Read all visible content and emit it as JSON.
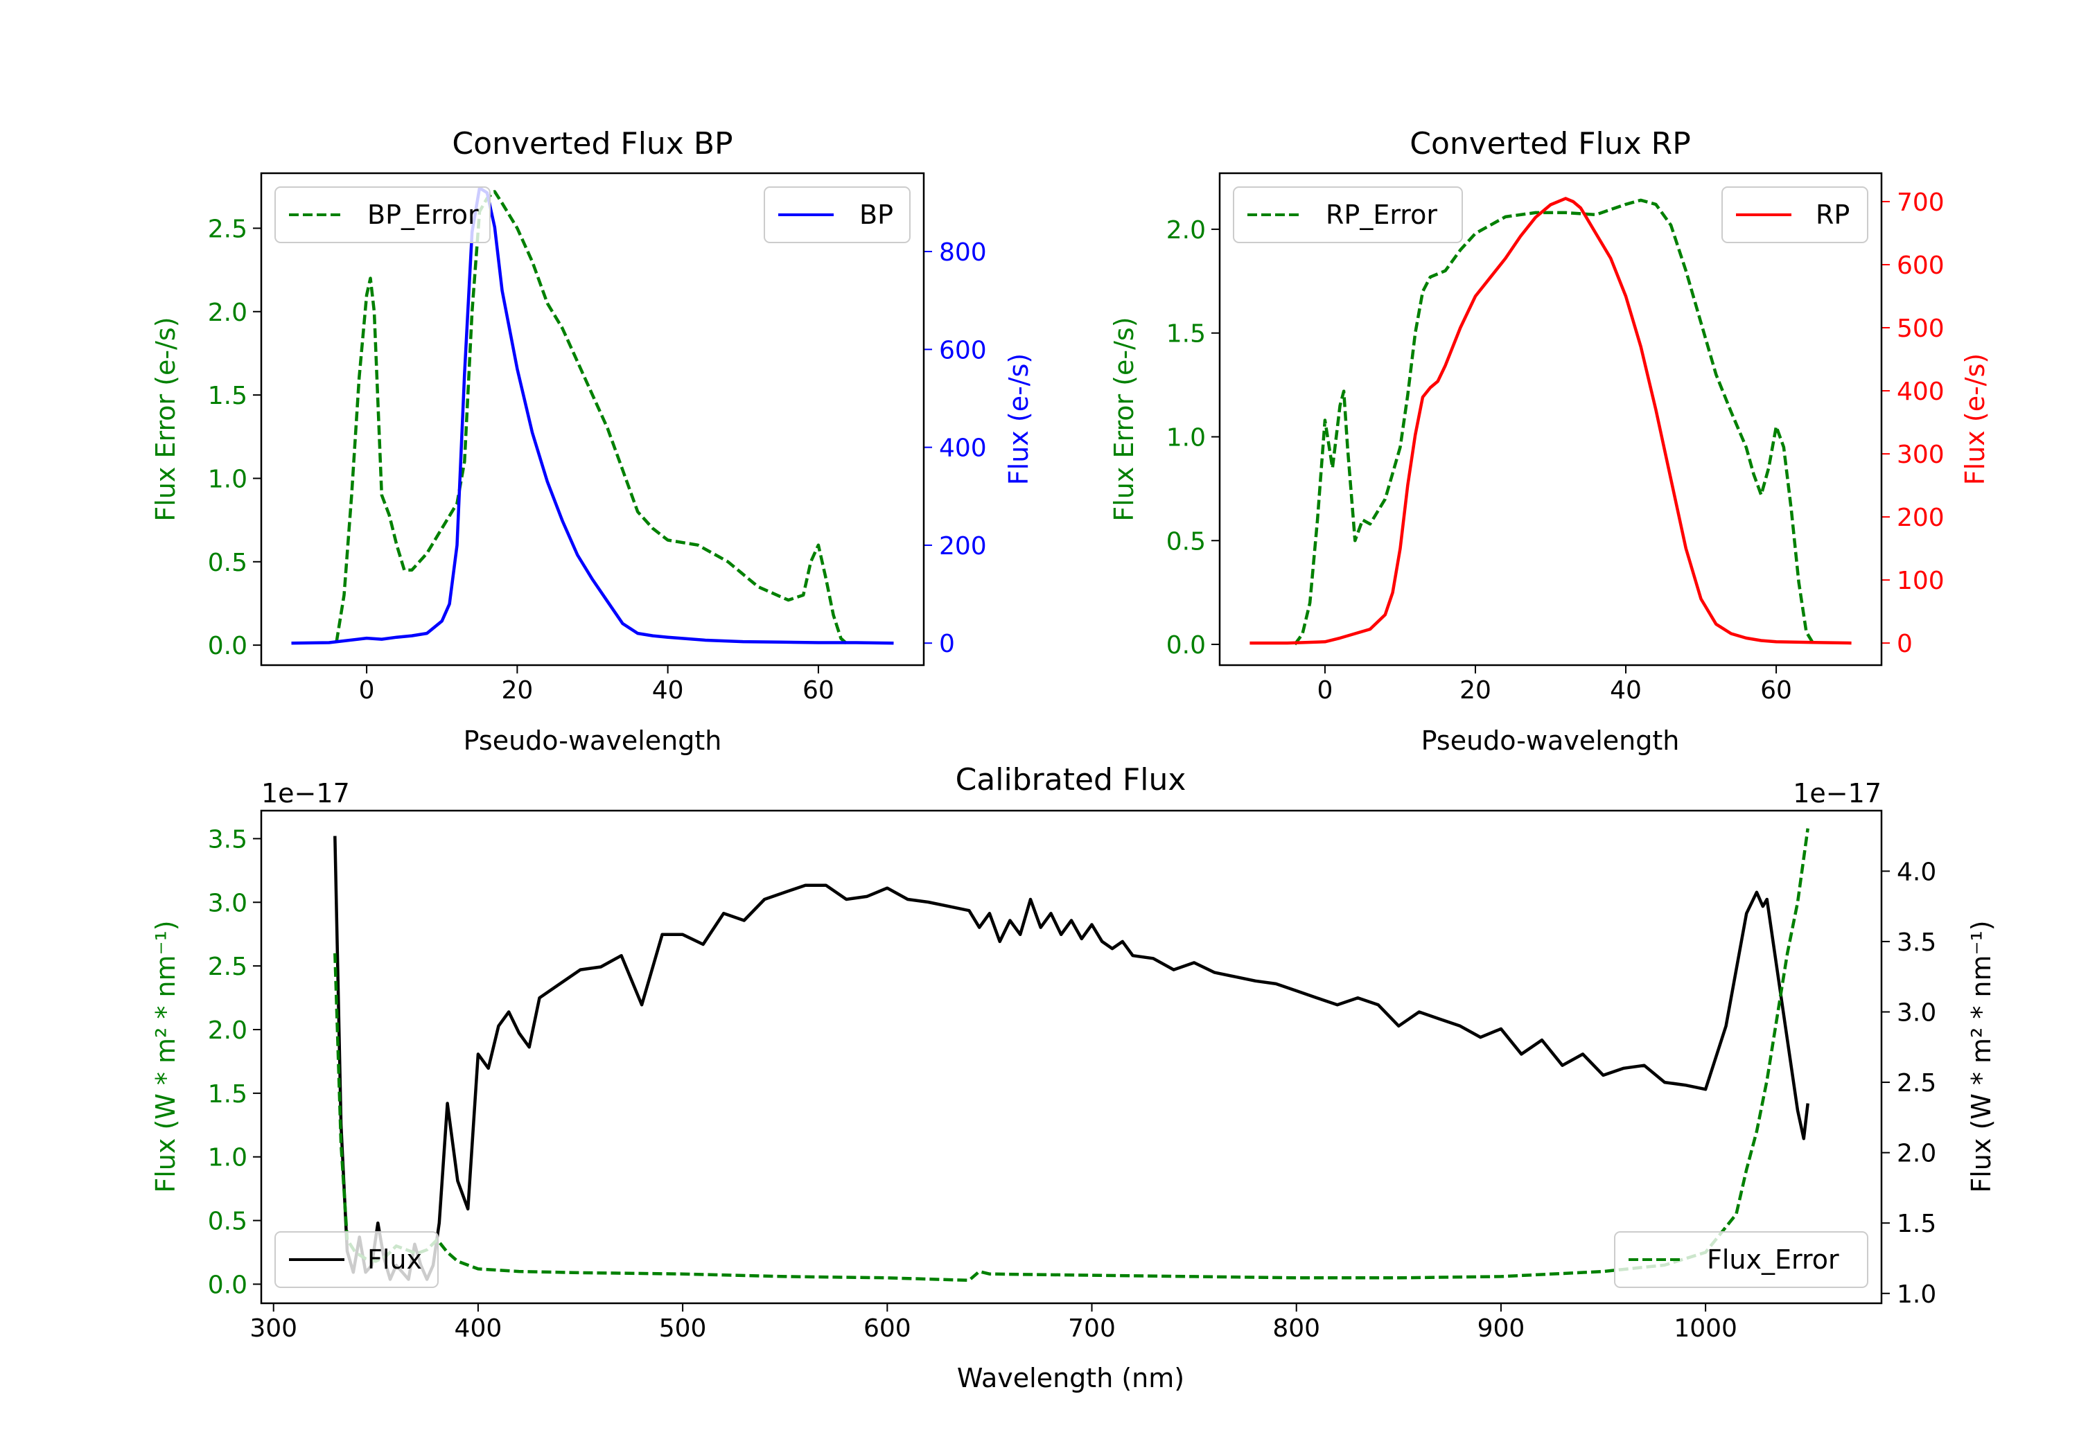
{
  "chart_data": [
    {
      "type": "line",
      "title": "Converted Flux BP",
      "xlabel": "Pseudo-wavelength",
      "ylabel_left": "Flux Error (e-/s)",
      "ylabel_right": "Flux (e-/s)",
      "xlim": [
        -14,
        74
      ],
      "ylim_left": [
        -0.12,
        2.83
      ],
      "ylim_right": [
        -45,
        960
      ],
      "x_ticks": [
        "0",
        "20",
        "40",
        "60"
      ],
      "y_ticks_left": [
        "0.0",
        "0.5",
        "1.0",
        "1.5",
        "2.0",
        "2.5"
      ],
      "y_ticks_right": [
        "0",
        "200",
        "400",
        "600",
        "800"
      ],
      "legend_left": "BP_Error",
      "legend_right": "BP",
      "colors": {
        "error": "#008000",
        "flux": "#0000ff",
        "right_axis": "#0000ff"
      },
      "series": [
        {
          "name": "BP_Error",
          "axis": "left",
          "style": "dashed",
          "x": [
            -4,
            -3,
            -2,
            -1,
            0,
            0.5,
            1,
            2,
            3,
            4,
            5,
            6,
            8,
            10,
            12,
            13,
            14,
            15,
            16,
            17,
            18,
            20,
            22,
            24,
            26,
            28,
            30,
            32,
            34,
            36,
            38,
            40,
            44,
            48,
            52,
            56,
            58,
            59,
            60,
            61,
            62,
            63,
            64
          ],
          "y": [
            0.02,
            0.3,
            0.9,
            1.6,
            2.1,
            2.2,
            2.0,
            0.9,
            0.78,
            0.6,
            0.45,
            0.45,
            0.55,
            0.7,
            0.85,
            1.1,
            2.0,
            2.6,
            2.68,
            2.72,
            2.65,
            2.5,
            2.3,
            2.05,
            1.9,
            1.7,
            1.5,
            1.3,
            1.05,
            0.8,
            0.7,
            0.63,
            0.6,
            0.5,
            0.35,
            0.27,
            0.3,
            0.5,
            0.6,
            0.4,
            0.18,
            0.04,
            0.0
          ]
        },
        {
          "name": "BP",
          "axis": "right",
          "style": "solid",
          "x": [
            -10,
            -5,
            0,
            2,
            4,
            6,
            8,
            10,
            11,
            12,
            13,
            14,
            15,
            16,
            17,
            18,
            20,
            22,
            24,
            26,
            28,
            30,
            32,
            34,
            36,
            38,
            40,
            45,
            50,
            55,
            60,
            65,
            70
          ],
          "y": [
            0,
            1,
            10,
            8,
            12,
            15,
            20,
            45,
            80,
            200,
            550,
            840,
            930,
            920,
            850,
            720,
            560,
            430,
            330,
            250,
            180,
            130,
            85,
            40,
            20,
            15,
            12,
            6,
            3,
            2,
            1,
            1,
            0
          ]
        }
      ]
    },
    {
      "type": "line",
      "title": "Converted Flux RP",
      "xlabel": "Pseudo-wavelength",
      "ylabel_left": "Flux Error (e-/s)",
      "ylabel_right": "Flux (e-/s)",
      "xlim": [
        -14,
        74
      ],
      "ylim_left": [
        -0.1,
        2.27
      ],
      "ylim_right": [
        -35,
        745
      ],
      "x_ticks": [
        "0",
        "20",
        "40",
        "60"
      ],
      "y_ticks_left": [
        "0.0",
        "0.5",
        "1.0",
        "1.5",
        "2.0"
      ],
      "y_ticks_right": [
        "0",
        "100",
        "200",
        "300",
        "400",
        "500",
        "600",
        "700"
      ],
      "legend_left": "RP_Error",
      "legend_right": "RP",
      "colors": {
        "error": "#008000",
        "flux": "#ff0000",
        "right_axis": "#ff0000"
      },
      "series": [
        {
          "name": "RP_Error",
          "axis": "left",
          "style": "dashed",
          "x": [
            -4,
            -3,
            -2,
            -1,
            0,
            1,
            2,
            2.5,
            3,
            4,
            5,
            6,
            8,
            10,
            11,
            12,
            13,
            14,
            16,
            18,
            20,
            24,
            28,
            32,
            36,
            40,
            42,
            44,
            46,
            48,
            50,
            52,
            54,
            56,
            57,
            58,
            59,
            60,
            61,
            62,
            63,
            64,
            65
          ],
          "y": [
            0.0,
            0.05,
            0.2,
            0.6,
            1.08,
            0.85,
            1.15,
            1.22,
            0.95,
            0.5,
            0.6,
            0.58,
            0.7,
            0.95,
            1.2,
            1.5,
            1.7,
            1.77,
            1.8,
            1.9,
            1.98,
            2.06,
            2.08,
            2.08,
            2.07,
            2.12,
            2.14,
            2.12,
            2.02,
            1.8,
            1.55,
            1.3,
            1.12,
            0.95,
            0.82,
            0.72,
            0.85,
            1.05,
            0.95,
            0.65,
            0.3,
            0.06,
            0.0
          ]
        },
        {
          "name": "RP",
          "axis": "right",
          "style": "solid",
          "x": [
            -10,
            -5,
            0,
            2,
            4,
            6,
            8,
            9,
            10,
            11,
            12,
            13,
            14,
            15,
            16,
            18,
            20,
            22,
            24,
            26,
            28,
            30,
            32,
            33,
            34,
            35,
            36,
            38,
            40,
            42,
            44,
            46,
            48,
            50,
            52,
            54,
            56,
            58,
            60,
            65,
            70
          ],
          "y": [
            0,
            0,
            2,
            8,
            15,
            22,
            45,
            80,
            150,
            250,
            330,
            390,
            405,
            415,
            440,
            500,
            550,
            580,
            610,
            645,
            675,
            695,
            705,
            700,
            690,
            670,
            650,
            610,
            550,
            470,
            370,
            260,
            150,
            70,
            30,
            15,
            8,
            4,
            2,
            1,
            0
          ]
        }
      ]
    },
    {
      "type": "line",
      "title": "Calibrated Flux",
      "xlabel": "Wavelength (nm)",
      "ylabel_left": "Flux (W * m² * nm⁻¹)",
      "ylabel_right": "Flux (W * m² * nm⁻¹)",
      "offset_left": "1e−17",
      "offset_right": "1e−17",
      "xlim": [
        294,
        1086
      ],
      "ylim_left": [
        -0.15,
        3.72
      ],
      "ylim_right": [
        0.93,
        4.43
      ],
      "x_ticks": [
        "300",
        "400",
        "500",
        "600",
        "700",
        "800",
        "900",
        "1000"
      ],
      "y_ticks_left": [
        "0.0",
        "0.5",
        "1.0",
        "1.5",
        "2.0",
        "2.5",
        "3.0",
        "3.5"
      ],
      "y_ticks_right": [
        "1.0",
        "1.5",
        "2.0",
        "2.5",
        "3.0",
        "3.5",
        "4.0"
      ],
      "legend_left": "Flux",
      "legend_right": "Flux_Error",
      "colors": {
        "error": "#008000",
        "flux": "#000000",
        "right_axis": "#000000"
      },
      "series": [
        {
          "name": "Flux",
          "axis": "right",
          "style": "solid",
          "x": [
            330,
            333,
            336,
            339,
            342,
            345,
            348,
            351,
            354,
            357,
            360,
            363,
            366,
            369,
            372,
            375,
            378,
            381,
            385,
            390,
            395,
            400,
            405,
            410,
            415,
            420,
            425,
            430,
            440,
            450,
            460,
            470,
            480,
            490,
            500,
            510,
            520,
            530,
            540,
            550,
            560,
            570,
            580,
            590,
            600,
            610,
            620,
            630,
            640,
            645,
            650,
            655,
            660,
            665,
            670,
            675,
            680,
            685,
            690,
            695,
            700,
            705,
            710,
            715,
            720,
            730,
            740,
            750,
            760,
            770,
            780,
            790,
            800,
            810,
            820,
            830,
            840,
            850,
            860,
            870,
            880,
            890,
            900,
            910,
            920,
            930,
            940,
            950,
            960,
            970,
            980,
            990,
            1000,
            1010,
            1020,
            1025,
            1028,
            1030,
            1035,
            1040,
            1045,
            1048,
            1050
          ],
          "y": [
            4.25,
            2.2,
            1.3,
            1.15,
            1.4,
            1.15,
            1.2,
            1.5,
            1.25,
            1.1,
            1.2,
            1.15,
            1.1,
            1.35,
            1.2,
            1.1,
            1.2,
            1.5,
            2.35,
            1.8,
            1.6,
            2.7,
            2.6,
            2.9,
            3.0,
            2.85,
            2.75,
            3.1,
            3.2,
            3.3,
            3.32,
            3.4,
            3.05,
            3.55,
            3.55,
            3.48,
            3.7,
            3.65,
            3.8,
            3.85,
            3.9,
            3.9,
            3.8,
            3.82,
            3.88,
            3.8,
            3.78,
            3.75,
            3.72,
            3.6,
            3.7,
            3.5,
            3.65,
            3.55,
            3.8,
            3.6,
            3.7,
            3.55,
            3.65,
            3.52,
            3.62,
            3.5,
            3.45,
            3.5,
            3.4,
            3.38,
            3.3,
            3.35,
            3.28,
            3.25,
            3.22,
            3.2,
            3.15,
            3.1,
            3.05,
            3.1,
            3.05,
            2.9,
            3.0,
            2.95,
            2.9,
            2.82,
            2.88,
            2.7,
            2.8,
            2.62,
            2.7,
            2.55,
            2.6,
            2.62,
            2.5,
            2.48,
            2.45,
            2.9,
            3.7,
            3.85,
            3.75,
            3.8,
            3.3,
            2.8,
            2.3,
            2.1,
            2.35
          ]
        },
        {
          "name": "Flux_Error",
          "axis": "left",
          "style": "dashed",
          "x": [
            330,
            333,
            336,
            340,
            345,
            350,
            355,
            360,
            365,
            370,
            375,
            380,
            385,
            390,
            400,
            420,
            450,
            500,
            550,
            600,
            640,
            645,
            650,
            700,
            750,
            800,
            850,
            900,
            950,
            980,
            1000,
            1010,
            1015,
            1020,
            1025,
            1030,
            1035,
            1040,
            1045,
            1050
          ],
          "y": [
            2.6,
            1.1,
            0.35,
            0.25,
            0.2,
            0.18,
            0.22,
            0.3,
            0.27,
            0.24,
            0.27,
            0.35,
            0.25,
            0.18,
            0.12,
            0.1,
            0.09,
            0.08,
            0.06,
            0.05,
            0.03,
            0.1,
            0.08,
            0.07,
            0.06,
            0.05,
            0.05,
            0.06,
            0.1,
            0.15,
            0.25,
            0.45,
            0.55,
            0.9,
            1.2,
            1.6,
            2.1,
            2.6,
            3.0,
            3.58
          ]
        }
      ]
    }
  ]
}
